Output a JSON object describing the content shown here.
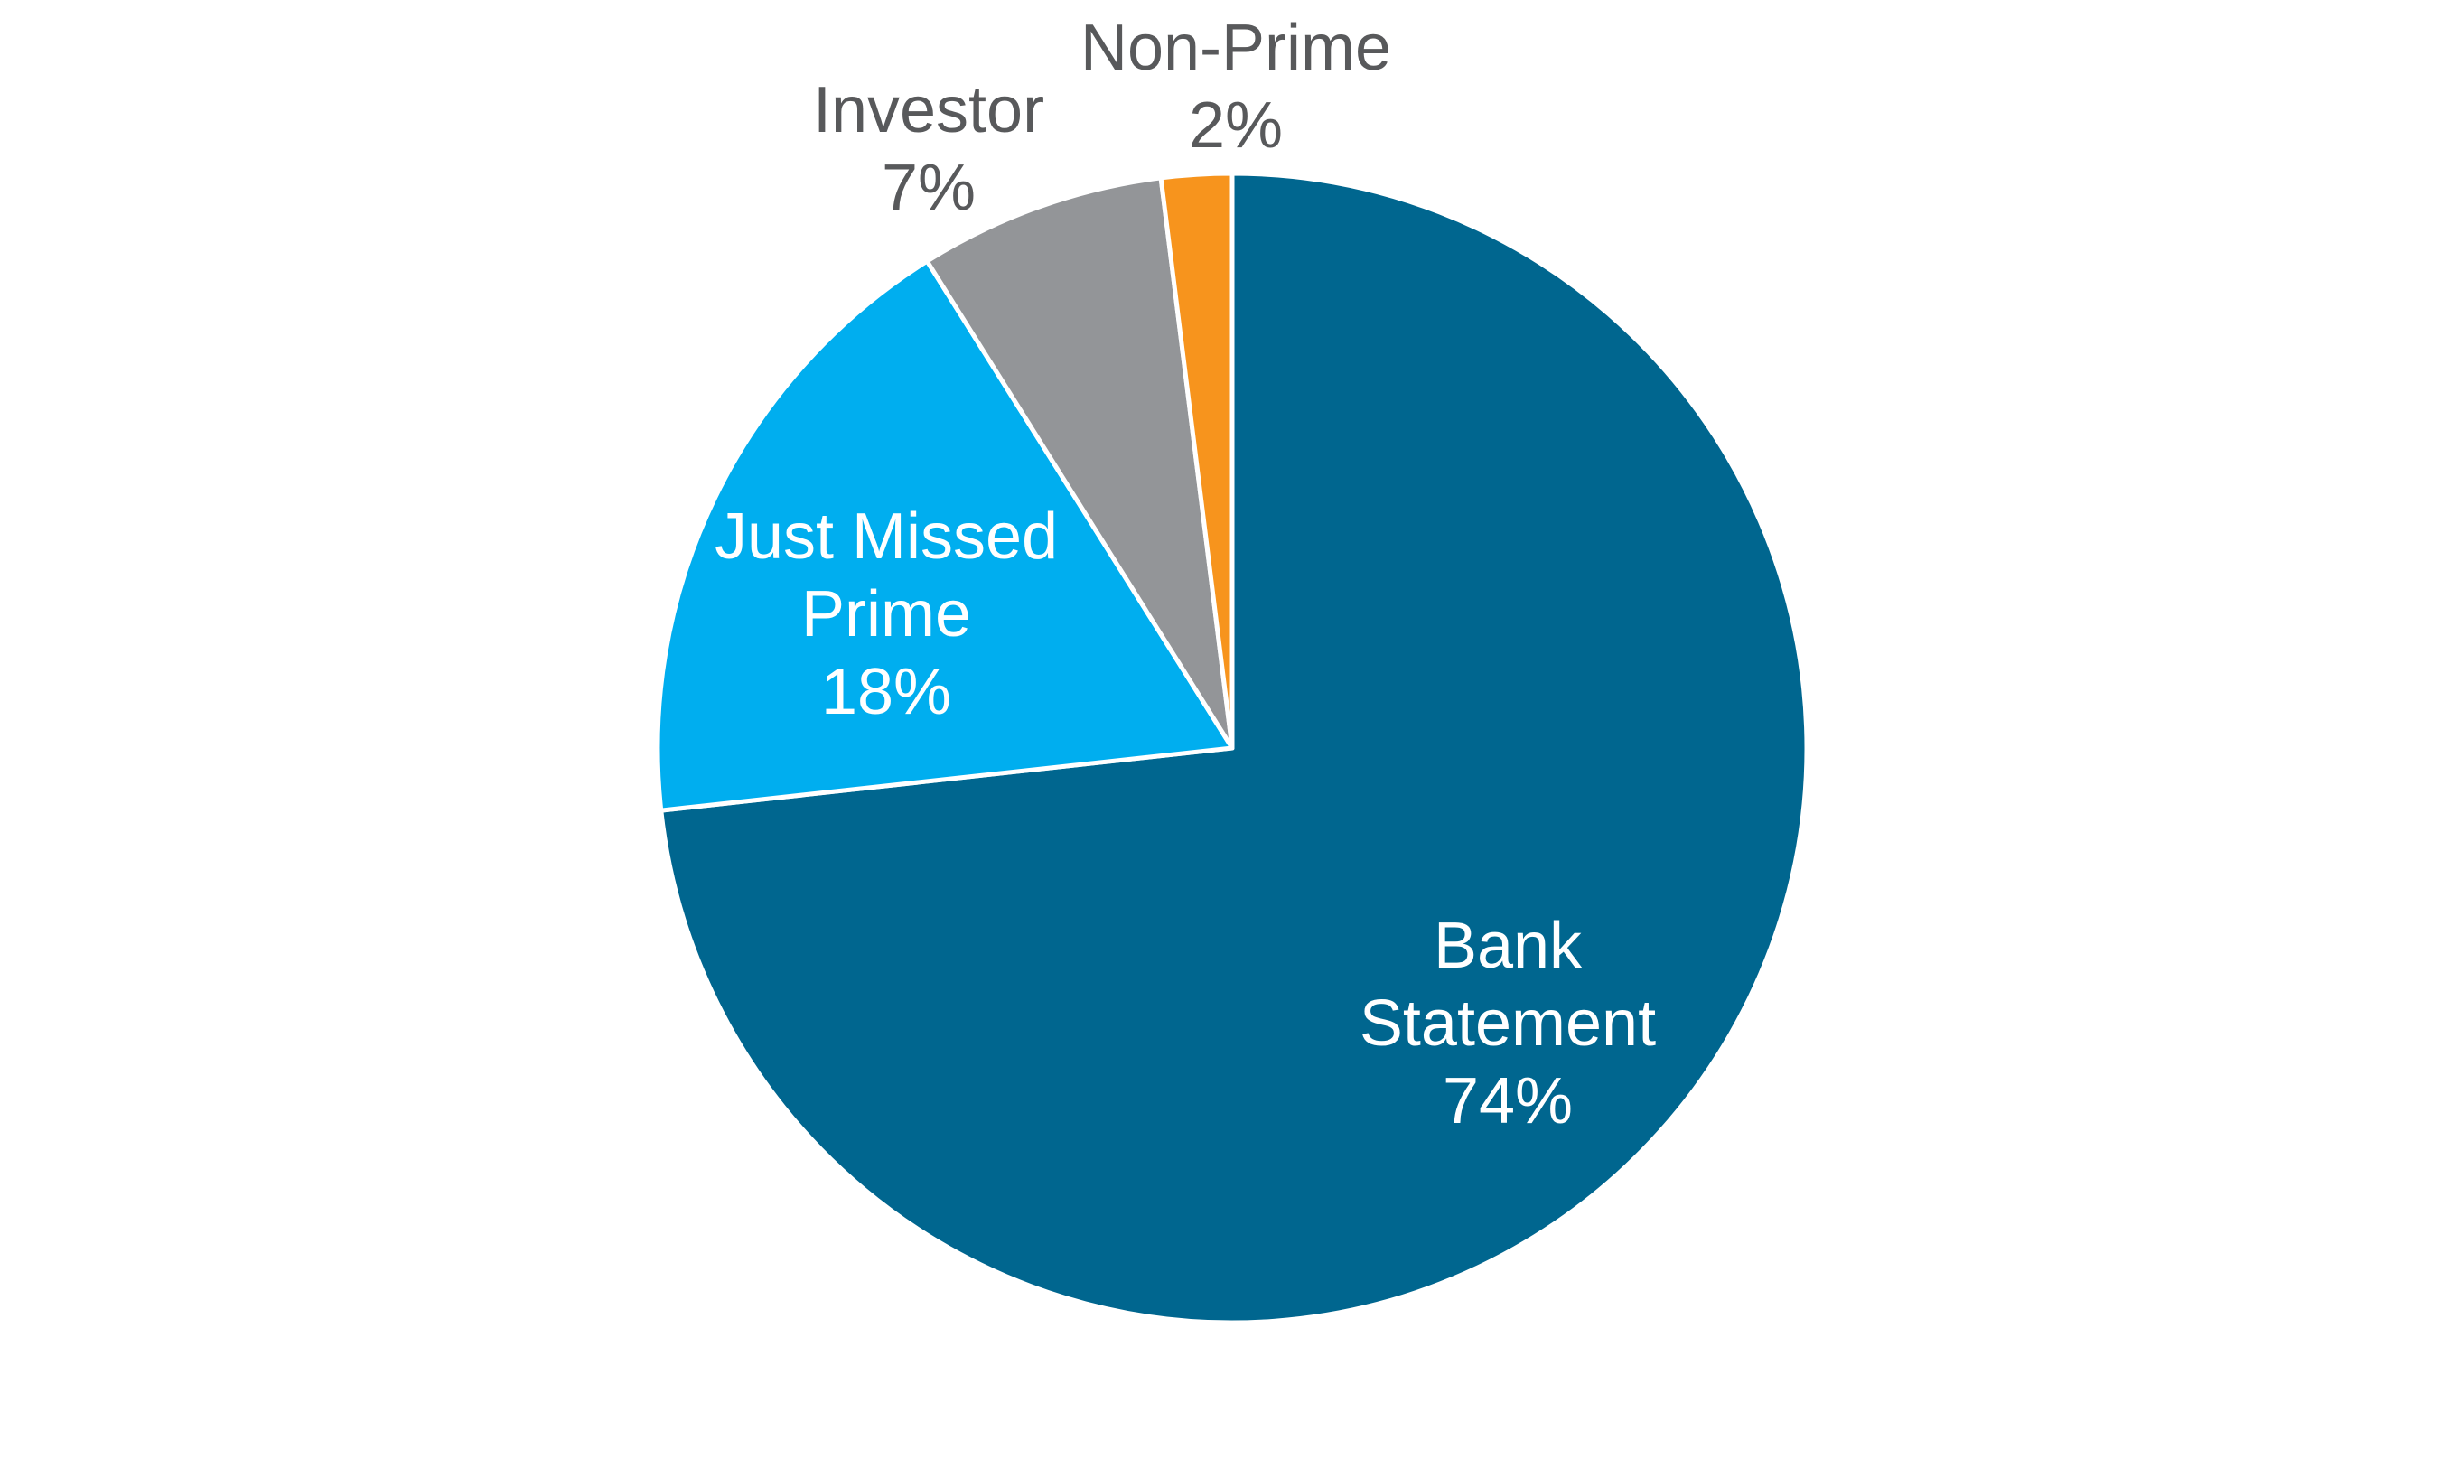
{
  "chart_data": {
    "type": "pie",
    "categories": [
      "Bank Statement",
      "Just Missed Prime",
      "Investor",
      "Non-Prime"
    ],
    "values": [
      74,
      18,
      7,
      2
    ],
    "value_labels": [
      "74%",
      "18%",
      "7%",
      "2%"
    ],
    "colors": [
      "#00668f",
      "#00aeef",
      "#939598",
      "#f7941d"
    ]
  }
}
